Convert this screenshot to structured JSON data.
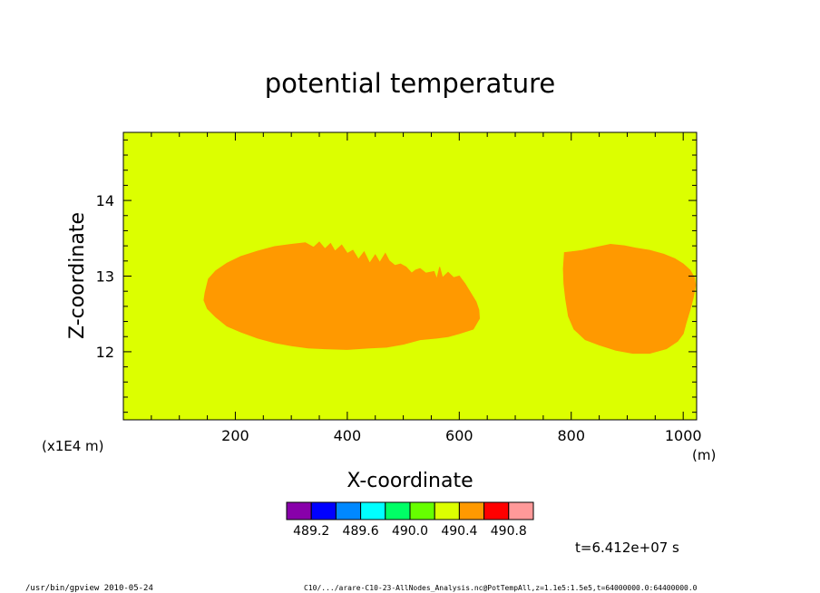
{
  "chart_data": {
    "type": "heatmap",
    "title": "potential temperature",
    "xlabel": "X-coordinate",
    "ylabel": "Z-coordinate",
    "x_unit": "(m)",
    "y_unit": "(x1E4 m)",
    "xlim": [
      0,
      1024
    ],
    "ylim": [
      11.1,
      14.9
    ],
    "x_ticks": [
      {
        "value": 200,
        "label": "200"
      },
      {
        "value": 400,
        "label": "400"
      },
      {
        "value": 600,
        "label": "600"
      },
      {
        "value": 800,
        "label": "800"
      },
      {
        "value": 1000,
        "label": "1000"
      }
    ],
    "y_ticks": [
      {
        "value": 12,
        "label": "12"
      },
      {
        "value": 13,
        "label": "13"
      },
      {
        "value": 14,
        "label": "14"
      }
    ],
    "background_level": {
      "color": "#dcff00",
      "range": [
        490.0,
        490.4
      ]
    },
    "regions": [
      {
        "color": "#ff9900",
        "range": [
          490.4,
          490.6
        ],
        "outline": [
          [
            146,
            12.78
          ],
          [
            152,
            12.96
          ],
          [
            165,
            13.07
          ],
          [
            185,
            13.17
          ],
          [
            210,
            13.26
          ],
          [
            240,
            13.33
          ],
          [
            270,
            13.39
          ],
          [
            300,
            13.42
          ],
          [
            325,
            13.44
          ],
          [
            340,
            13.38
          ],
          [
            350,
            13.45
          ],
          [
            360,
            13.36
          ],
          [
            370,
            13.43
          ],
          [
            378,
            13.33
          ],
          [
            390,
            13.41
          ],
          [
            400,
            13.3
          ],
          [
            410,
            13.34
          ],
          [
            420,
            13.22
          ],
          [
            430,
            13.32
          ],
          [
            440,
            13.17
          ],
          [
            450,
            13.28
          ],
          [
            458,
            13.18
          ],
          [
            468,
            13.3
          ],
          [
            475,
            13.2
          ],
          [
            485,
            13.14
          ],
          [
            495,
            13.16
          ],
          [
            505,
            13.12
          ],
          [
            515,
            13.04
          ],
          [
            522,
            13.08
          ],
          [
            530,
            13.1
          ],
          [
            540,
            13.04
          ],
          [
            555,
            13.06
          ],
          [
            560,
            12.96
          ],
          [
            565,
            13.12
          ],
          [
            570,
            12.98
          ],
          [
            580,
            13.05
          ],
          [
            590,
            12.98
          ],
          [
            600,
            13.0
          ],
          [
            610,
            12.9
          ],
          [
            620,
            12.78
          ],
          [
            630,
            12.66
          ],
          [
            635,
            12.55
          ],
          [
            636,
            12.44
          ],
          [
            625,
            12.3
          ],
          [
            600,
            12.24
          ],
          [
            580,
            12.2
          ],
          [
            560,
            12.18
          ],
          [
            530,
            12.16
          ],
          [
            500,
            12.1
          ],
          [
            470,
            12.06
          ],
          [
            440,
            12.05
          ],
          [
            400,
            12.03
          ],
          [
            360,
            12.04
          ],
          [
            330,
            12.05
          ],
          [
            300,
            12.08
          ],
          [
            270,
            12.12
          ],
          [
            240,
            12.18
          ],
          [
            210,
            12.26
          ],
          [
            185,
            12.34
          ],
          [
            165,
            12.46
          ],
          [
            150,
            12.57
          ],
          [
            144,
            12.68
          ]
        ]
      },
      {
        "color": "#ff9900",
        "range": [
          490.4,
          490.6
        ],
        "outline": [
          [
            788,
            13.31
          ],
          [
            800,
            13.32
          ],
          [
            820,
            13.34
          ],
          [
            845,
            13.38
          ],
          [
            870,
            13.42
          ],
          [
            895,
            13.4
          ],
          [
            915,
            13.37
          ],
          [
            940,
            13.34
          ],
          [
            965,
            13.29
          ],
          [
            985,
            13.23
          ],
          [
            1000,
            13.16
          ],
          [
            1012,
            13.08
          ],
          [
            1020,
            12.98
          ],
          [
            1022,
            12.88
          ],
          [
            1018,
            12.72
          ],
          [
            1012,
            12.55
          ],
          [
            1005,
            12.38
          ],
          [
            1000,
            12.24
          ],
          [
            990,
            12.14
          ],
          [
            970,
            12.04
          ],
          [
            940,
            11.98
          ],
          [
            910,
            11.98
          ],
          [
            880,
            12.02
          ],
          [
            850,
            12.09
          ],
          [
            825,
            12.16
          ],
          [
            805,
            12.3
          ],
          [
            795,
            12.47
          ],
          [
            790,
            12.7
          ],
          [
            787,
            12.9
          ],
          [
            786,
            13.1
          ]
        ]
      }
    ],
    "colorbar": {
      "colors": [
        "#8800aa",
        "#0000ff",
        "#0088ff",
        "#00ffff",
        "#00ff66",
        "#66ff00",
        "#dcff00",
        "#ff9900",
        "#ff0000",
        "#ff9999"
      ],
      "labels": [
        "489.2",
        "489.6",
        "490.0",
        "490.4",
        "490.8"
      ]
    },
    "time_annotation": "t=6.412e+07 s",
    "footer_left": "/usr/bin/gpview  2010-05-24",
    "footer_right": "C10/.../arare-C10-23-AllNodes_Analysis.nc@PotTempAll,z=1.1e5:1.5e5,t=64000000.0:64400000.0"
  }
}
